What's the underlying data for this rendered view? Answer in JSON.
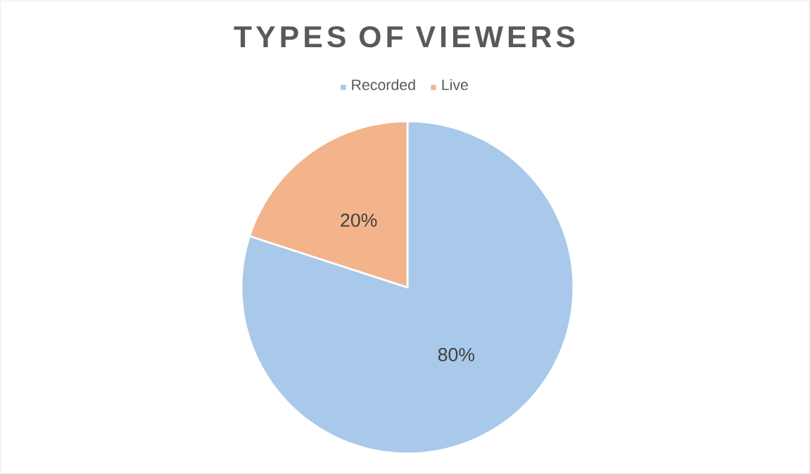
{
  "chart_data": {
    "type": "pie",
    "title": "TYPES OF VIEWERS",
    "categories": [
      "Recorded",
      "Live"
    ],
    "values": [
      80,
      20
    ],
    "value_labels": [
      "80%",
      "20%"
    ],
    "colors": [
      "#a9c9ea",
      "#f3b48b"
    ],
    "legend": "top"
  }
}
